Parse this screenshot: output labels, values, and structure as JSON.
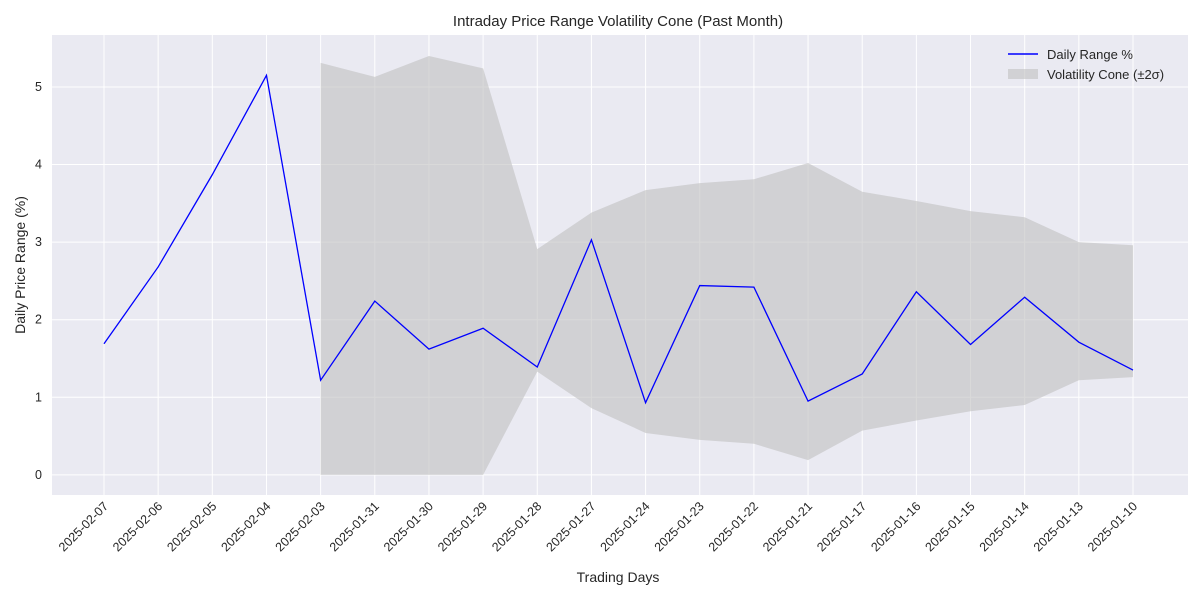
{
  "chart_data": {
    "type": "line",
    "title": "Intraday Price Range Volatility Cone (Past Month)",
    "xlabel": "Trading Days",
    "ylabel": "Daily Price Range (%)",
    "ylim": [
      -0.26,
      5.67
    ],
    "yticks": [
      0,
      1,
      2,
      3,
      4,
      5
    ],
    "grid": true,
    "legend_position": "top-right",
    "categories": [
      "2025-02-07",
      "2025-02-06",
      "2025-02-05",
      "2025-02-04",
      "2025-02-03",
      "2025-01-31",
      "2025-01-30",
      "2025-01-29",
      "2025-01-28",
      "2025-01-27",
      "2025-01-24",
      "2025-01-23",
      "2025-01-22",
      "2025-01-21",
      "2025-01-17",
      "2025-01-16",
      "2025-01-15",
      "2025-01-14",
      "2025-01-13",
      "2025-01-10"
    ],
    "series": [
      {
        "name": "Daily Range %",
        "color": "#0000ff",
        "values": [
          1.69,
          2.68,
          3.87,
          5.15,
          1.22,
          2.24,
          1.62,
          1.89,
          1.39,
          3.03,
          0.93,
          2.44,
          2.42,
          0.95,
          1.3,
          2.36,
          1.68,
          2.29,
          1.71,
          1.35
        ]
      }
    ],
    "band": {
      "name": "Volatility Cone (±2σ)",
      "color": "#c0c0c0",
      "start_index": 4,
      "upper": [
        5.31,
        5.13,
        5.4,
        5.24,
        2.91,
        3.38,
        3.67,
        3.76,
        3.81,
        4.02,
        3.65,
        3.53,
        3.4,
        3.32,
        3.0,
        2.96
      ],
      "lower": [
        0,
        0,
        0,
        0,
        1.33,
        0.86,
        0.54,
        0.45,
        0.4,
        0.19,
        0.57,
        0.7,
        0.82,
        0.9,
        1.22,
        1.26
      ]
    }
  }
}
